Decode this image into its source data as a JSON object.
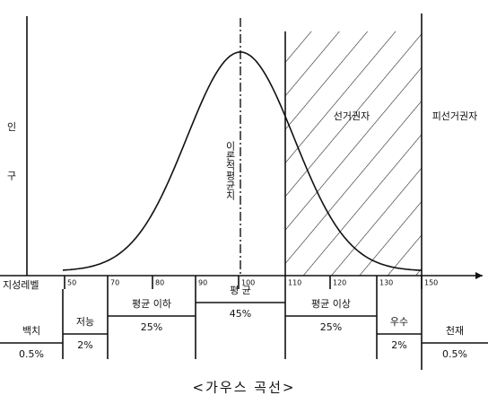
{
  "axis": {
    "y_label": "인 구",
    "x_label": "지성레벨",
    "ticks": [
      "50",
      "70",
      "80",
      "90",
      "100",
      "110",
      "120",
      "130",
      "150"
    ]
  },
  "annotations": {
    "mean": "이론적평균치",
    "voters": "선거권자",
    "candidates": "피선거권자"
  },
  "groups": [
    {
      "name": "백치",
      "share": "0.5%"
    },
    {
      "name": "저능",
      "share": "2%"
    },
    {
      "name": "평균 이하",
      "share": "25%"
    },
    {
      "name": "평 균",
      "share": "45%"
    },
    {
      "name": "평균 이상",
      "share": "25%"
    },
    {
      "name": "우수",
      "share": "2%"
    },
    {
      "name": "천재",
      "share": "0.5%"
    }
  ],
  "caption": "<가우스 곡선>"
}
